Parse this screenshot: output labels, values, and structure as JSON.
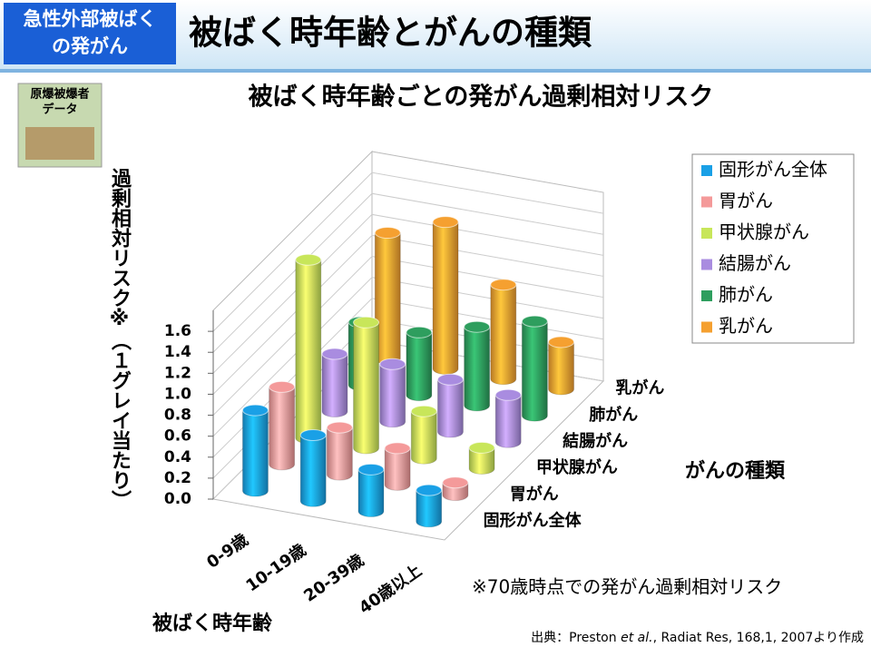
{
  "header": {
    "badge": [
      "急性外部被ばく",
      "の発がん"
    ],
    "title": "被ばく時年齢とがんの種類",
    "icon": [
      "原爆被爆者",
      "データ"
    ]
  },
  "chart_data": {
    "type": "bar3d",
    "title": "被ばく時年齢ごとの発がん過剰相対リスク",
    "y_label": "過剰相対リスク※（１グレイ当たり）",
    "x_label": "被ばく時年齢",
    "z_label": "がんの種類",
    "categories": [
      "0-9歳",
      "10-19歳",
      "20-39歳",
      "40歳以上"
    ],
    "series": [
      {
        "name": "固形がん全体",
        "color": "#1aa0e6",
        "values": [
          0.77,
          0.63,
          0.4,
          0.3
        ]
      },
      {
        "name": "胃がん",
        "color": "#f49a9a",
        "values": [
          0.74,
          0.45,
          0.35,
          0.12
        ]
      },
      {
        "name": "甲状腺がん",
        "color": "#c8e65a",
        "values": [
          1.7,
          1.2,
          0.45,
          0.2
        ]
      },
      {
        "name": "結腸がん",
        "color": "#a98ce0",
        "values": [
          0.55,
          0.55,
          0.5,
          0.45
        ]
      },
      {
        "name": "肺がん",
        "color": "#2e9e5e",
        "values": [
          0.6,
          0.6,
          0.75,
          0.9
        ]
      },
      {
        "name": "乳がん",
        "color": "#f5a030",
        "values": [
          1.2,
          1.4,
          0.9,
          0.45
        ]
      }
    ],
    "ylim": [
      0,
      1.8
    ],
    "yticks": [
      {
        "value": 0,
        "label": "0.0"
      },
      {
        "value": 0.2,
        "label": "0.2"
      },
      {
        "value": 0.4,
        "label": "0.4"
      },
      {
        "value": 0.6,
        "label": "0.6"
      },
      {
        "value": 0.8,
        "label": "0.8"
      },
      {
        "value": 1,
        "label": "1.0"
      },
      {
        "value": 1.2,
        "label": "1.2"
      },
      {
        "value": 1.4,
        "label": "1.4"
      },
      {
        "value": 1.6,
        "label": "1.6"
      }
    ],
    "grid": true,
    "legend": "right",
    "note": "※70歳時点での発がん過剰相対リスク",
    "source": [
      "出典：Preston ",
      "et al.",
      ", Radiat Res, 168,1, 2007より作成"
    ]
  }
}
